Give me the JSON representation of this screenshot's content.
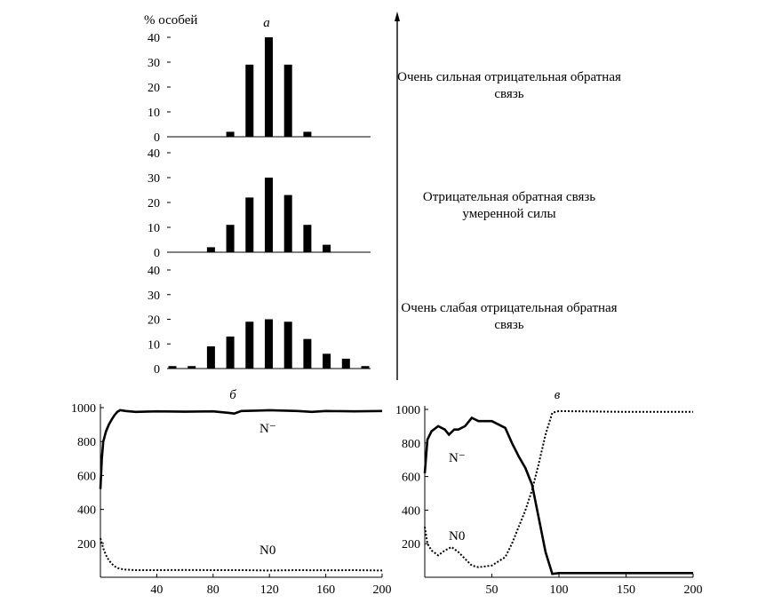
{
  "chart_data": [
    {
      "panel": "а",
      "type": "bar",
      "ylabel": "% особей",
      "subplots": [
        {
          "annotation": "Очень сильная отрицательная обратная связь",
          "ylim": [
            0,
            40
          ],
          "yticks": [
            0,
            10,
            20,
            30,
            40
          ],
          "values": [
            0,
            0,
            0,
            2,
            29,
            40,
            29,
            2,
            0,
            0,
            0
          ]
        },
        {
          "annotation": "Отрицательная обратная связь умеренной силы",
          "ylim": [
            0,
            40
          ],
          "yticks": [
            0,
            10,
            20,
            30,
            40
          ],
          "values": [
            0,
            0,
            2,
            11,
            22,
            30,
            23,
            11,
            3,
            0,
            0
          ]
        },
        {
          "annotation": "Очень слабая отрицательная обратная связь",
          "ylim": [
            0,
            40
          ],
          "yticks": [
            0,
            10,
            20,
            30,
            40
          ],
          "values": [
            1,
            1,
            9,
            13,
            19,
            20,
            19,
            12,
            6,
            4,
            1
          ]
        }
      ]
    },
    {
      "panel": "б",
      "type": "line",
      "xlim": [
        0,
        200
      ],
      "ylim": [
        0,
        1000
      ],
      "xticks": [
        40,
        80,
        120,
        160,
        200
      ],
      "yticks": [
        200,
        400,
        600,
        800,
        1000
      ],
      "series": [
        {
          "name": "N⁻",
          "style": "solid",
          "x": [
            0,
            1,
            2,
            4,
            6,
            8,
            10,
            12,
            14,
            18,
            25,
            40,
            60,
            80,
            90,
            95,
            100,
            110,
            120,
            140,
            150,
            160,
            180,
            200
          ],
          "y": [
            520,
            700,
            800,
            860,
            900,
            930,
            955,
            975,
            985,
            980,
            975,
            978,
            976,
            978,
            970,
            965,
            980,
            982,
            985,
            980,
            975,
            980,
            978,
            980
          ]
        },
        {
          "name": "N0",
          "style": "dotted",
          "x": [
            0,
            1,
            2,
            4,
            6,
            8,
            10,
            12,
            14,
            18,
            25,
            40,
            60,
            80,
            100,
            120,
            140,
            160,
            180,
            200
          ],
          "y": [
            230,
            200,
            170,
            130,
            100,
            80,
            65,
            55,
            50,
            45,
            42,
            42,
            43,
            42,
            42,
            40,
            42,
            41,
            42,
            40
          ]
        }
      ]
    },
    {
      "panel": "в",
      "type": "line",
      "xlim": [
        0,
        200
      ],
      "ylim": [
        0,
        1000
      ],
      "xticks": [
        50,
        100,
        150,
        200
      ],
      "yticks": [
        200,
        400,
        600,
        800,
        1000
      ],
      "series": [
        {
          "name": "N⁻",
          "style": "solid",
          "x": [
            0,
            2,
            5,
            10,
            15,
            18,
            22,
            25,
            30,
            35,
            40,
            50,
            60,
            65,
            70,
            75,
            80,
            85,
            90,
            95,
            100,
            150,
            200
          ],
          "y": [
            620,
            820,
            870,
            900,
            880,
            850,
            880,
            880,
            900,
            950,
            930,
            930,
            890,
            800,
            720,
            650,
            550,
            350,
            150,
            20,
            25,
            25,
            25
          ]
        },
        {
          "name": "N0",
          "style": "dotted",
          "x": [
            0,
            2,
            5,
            10,
            15,
            20,
            25,
            30,
            35,
            40,
            50,
            60,
            65,
            70,
            75,
            80,
            85,
            90,
            95,
            100,
            150,
            200
          ],
          "y": [
            300,
            200,
            160,
            130,
            160,
            180,
            150,
            110,
            70,
            60,
            70,
            120,
            200,
            300,
            400,
            520,
            680,
            850,
            980,
            990,
            985,
            985
          ]
        }
      ]
    }
  ]
}
